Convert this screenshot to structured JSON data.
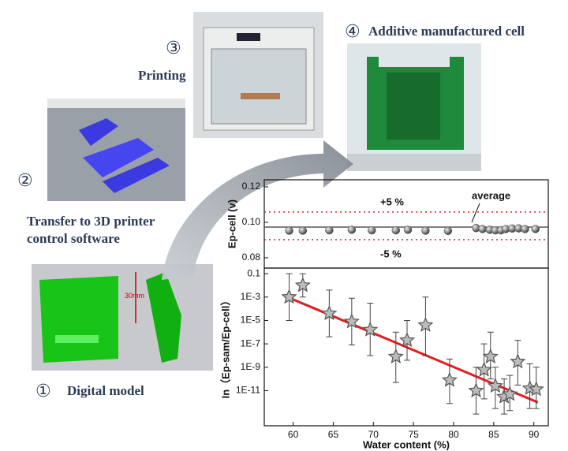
{
  "steps": [
    {
      "number": "①",
      "label": "Digital model"
    },
    {
      "number": "②",
      "label": "Transfer to 3D printer control software"
    },
    {
      "number": "③",
      "label": "Printing"
    },
    {
      "number": "④",
      "label": "Additive manufactured cell"
    }
  ],
  "model_dimension": "30mm",
  "chart_data": [
    {
      "type": "scatter",
      "marker": "ball",
      "color": "#555555",
      "y_label": "Ep-cell (v)",
      "x": [
        59.5,
        61.2,
        64.5,
        67.3,
        69.8,
        72.8,
        74.3,
        76.5,
        79.3,
        82.8,
        83.6,
        84.5,
        85.2,
        85.9,
        86.5,
        87.3,
        88.1,
        88.9,
        90.2
      ],
      "y": [
        0.0953,
        0.0953,
        0.0955,
        0.0958,
        0.0955,
        0.0955,
        0.0958,
        0.0953,
        0.0952,
        0.0968,
        0.0962,
        0.0958,
        0.0955,
        0.0955,
        0.0962,
        0.0965,
        0.0966,
        0.0962,
        0.0962
      ],
      "xlim": [
        56.4,
        91.8
      ],
      "ylim": [
        0.0742,
        0.124
      ],
      "yticks": [
        0.08,
        {
          "value": 0.1,
          "label": "0.10"
        },
        0.12
      ],
      "reference_lines": [
        {
          "value": 0.0973,
          "color": "#555555",
          "style": "solid"
        },
        {
          "value": 0.1058,
          "color": "#e02020",
          "style": "dotted"
        },
        {
          "value": 0.0902,
          "color": "#e02020",
          "style": "dotted"
        }
      ],
      "annotations": [
        "+5 %",
        "-5 %",
        "average"
      ]
    },
    {
      "type": "scatter",
      "marker": "star",
      "color": "#555555",
      "x_label": "Water content (%)",
      "y_label": "In（Ep-sam/Ep-cell）",
      "yscale": "log",
      "x": [
        59.5,
        61.2,
        64.5,
        67.3,
        69.6,
        72.8,
        74.2,
        76.5,
        79.5,
        82.8,
        83.8,
        84.6,
        85.2,
        86.3,
        87,
        88,
        89.5,
        90.3
      ],
      "y": [
        0.001,
        0.01,
        4e-05,
        8e-06,
        1.6e-06,
        8e-09,
        2e-07,
        4e-06,
        8e-11,
        1e-11,
        6e-10,
        8e-09,
        2.5e-11,
        3e-12,
        5e-12,
        3e-09,
        1.6e-11,
        1.3e-11
      ],
      "y_low": [
        1e-05,
        0.001,
        4e-07,
        8e-08,
        1e-08,
        5e-11,
        4e-09,
        1e-08,
        8e-13,
        1e-13,
        2e-12,
        1e-10,
        3e-13,
        1e-13,
        2e-13,
        3e-11,
        3e-13,
        3e-13
      ],
      "y_high": [
        0.1,
        0.1,
        0.004,
        0.0008,
        0.0003,
        1e-06,
        1e-05,
        0.001,
        5e-09,
        1e-09,
        1e-07,
        1e-06,
        1e-09,
        1e-10,
        2e-10,
        2e-07,
        2e-09,
        1e-09
      ],
      "xlim": [
        56.4,
        91.8
      ],
      "ylim": [
        1e-14,
        0.3
      ],
      "xticks": [
        60,
        65,
        70,
        75,
        80,
        85,
        90
      ],
      "yticks": [
        0.1,
        {
          "value": 0.001,
          "label": "1E-3"
        },
        {
          "value": 1e-05,
          "label": "1E-5"
        },
        {
          "value": 1e-07,
          "label": "1E-7"
        },
        {
          "value": 1e-09,
          "label": "1E-9"
        },
        {
          "value": 1e-11,
          "label": "1E-11"
        }
      ],
      "fit": {
        "x": [
          59,
          90.5
        ],
        "y": [
          0.0012,
          1e-12
        ],
        "color": "#e02020"
      }
    }
  ]
}
